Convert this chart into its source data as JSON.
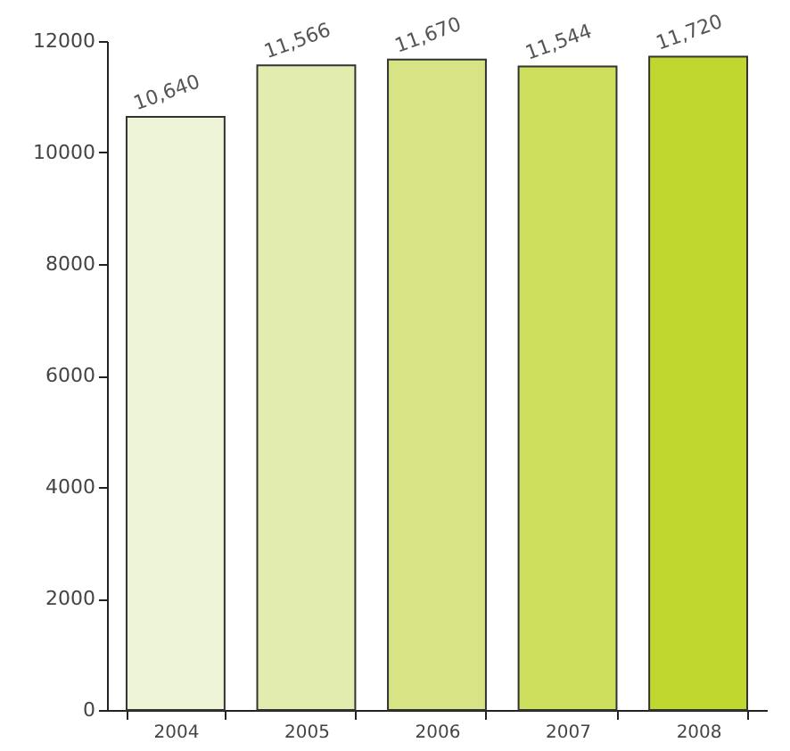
{
  "chart_data": {
    "type": "bar",
    "categories": [
      "2004",
      "2005",
      "2006",
      "2007",
      "2008"
    ],
    "values": [
      10640,
      11566,
      11670,
      11544,
      11720
    ],
    "colors": [
      "#eef5d6",
      "#e2ecae",
      "#d7e384",
      "#cddf5c",
      "#c0d72f"
    ],
    "value_labels": [
      "10,640",
      "11,566",
      "11,670",
      "11,544",
      "11,720"
    ],
    "ylim": [
      0,
      12000
    ],
    "yticks": [
      0,
      2000,
      4000,
      6000,
      8000,
      10000,
      12000
    ],
    "grid": false
  }
}
